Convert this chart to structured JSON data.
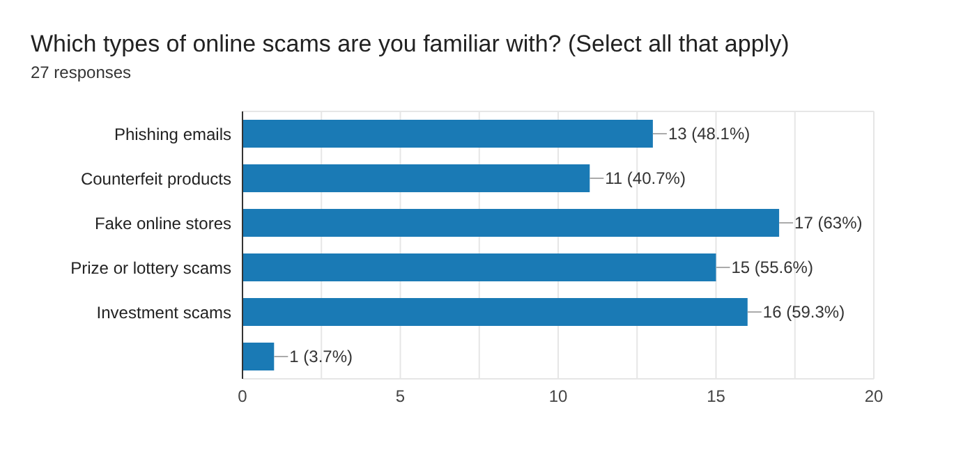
{
  "chart_data": {
    "type": "bar",
    "orientation": "horizontal",
    "title": "Which types of online scams are you familiar with? (Select all that apply)",
    "subtitle": "27 responses",
    "categories": [
      "Phishing emails",
      "Counterfeit products",
      "Fake online stores",
      "Prize or lottery scams",
      "Investment scams",
      null
    ],
    "values": [
      13,
      11,
      17,
      15,
      16,
      1
    ],
    "value_labels": [
      "13 (48.1%)",
      "11 (40.7%)",
      "17 (63%)",
      "15 (55.6%)",
      "16 (59.3%)",
      "1 (3.7%)"
    ],
    "color": "#1a7ab5",
    "xlim": [
      0,
      20
    ],
    "xticks": [
      0,
      {
        "value": 2.5,
        "label": null
      },
      5,
      {
        "value": 7.5,
        "label": null
      },
      10,
      {
        "value": 12.5,
        "label": null
      },
      15,
      {
        "value": 17.5,
        "label": null
      },
      20
    ],
    "grid": "x"
  }
}
